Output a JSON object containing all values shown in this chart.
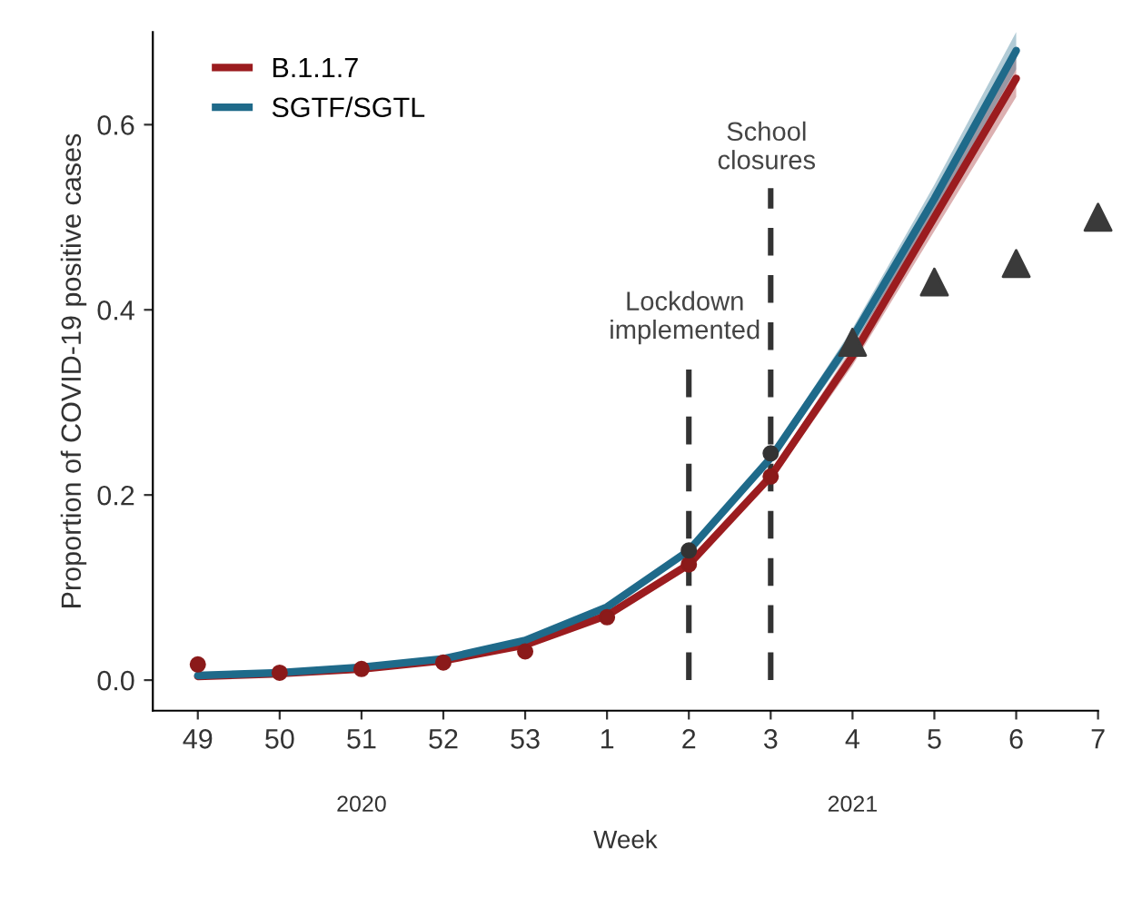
{
  "chart_data": {
    "type": "line",
    "xlabel": "Week",
    "ylabel": "Proportion of COVID-19 positive cases",
    "categories": [
      "49",
      "50",
      "51",
      "52",
      "53",
      "1",
      "2",
      "3",
      "4",
      "5",
      "6",
      "7"
    ],
    "series": [
      {
        "name": "B.1.1.7",
        "color": "#9b1c1f",
        "values": [
          0.004,
          0.007,
          0.012,
          0.021,
          0.038,
          0.07,
          0.125,
          0.22,
          0.35,
          0.5,
          0.65,
          null
        ],
        "lower": [
          null,
          null,
          null,
          null,
          null,
          null,
          null,
          0.215,
          0.34,
          0.485,
          0.63,
          null
        ],
        "upper": [
          null,
          null,
          null,
          null,
          null,
          null,
          null,
          0.225,
          0.36,
          0.515,
          0.675,
          null
        ]
      },
      {
        "name": "SGTF/SGTL",
        "color": "#1f6a8a",
        "values": [
          0.005,
          0.008,
          0.014,
          0.023,
          0.043,
          0.079,
          0.14,
          0.24,
          0.37,
          0.52,
          0.68,
          null
        ],
        "lower": [
          null,
          null,
          null,
          null,
          null,
          null,
          null,
          0.235,
          0.36,
          0.505,
          0.66,
          null
        ],
        "upper": [
          null,
          null,
          null,
          null,
          null,
          null,
          null,
          0.245,
          0.38,
          0.535,
          0.7,
          null
        ]
      },
      {
        "type": "scatter",
        "marker": "circle",
        "color": "#8b1a1a",
        "values": [
          0.017,
          0.008,
          0.012,
          0.019,
          0.031,
          0.068,
          0.125,
          0.22,
          null,
          null,
          null,
          null
        ]
      },
      {
        "type": "scatter",
        "marker": "circle",
        "color": "#333333",
        "values": [
          null,
          null,
          null,
          null,
          null,
          null,
          0.14,
          0.245,
          null,
          null,
          null,
          null
        ]
      },
      {
        "type": "scatter",
        "marker": "triangle",
        "color": "#3a3a3a",
        "values": [
          null,
          null,
          null,
          null,
          null,
          null,
          null,
          null,
          0.365,
          0.43,
          0.45,
          0.5
        ]
      }
    ],
    "ylim": [
      -0.033,
      0.7
    ],
    "yticks": [
      {
        "value": 0,
        "label": "0.0"
      },
      {
        "value": 0.2,
        "label": "0.2"
      },
      {
        "value": 0.4,
        "label": "0.4"
      },
      {
        "value": 0.6,
        "label": "0.6"
      }
    ],
    "ref_lines": [
      {
        "axis": "x",
        "value": "2",
        "label": "Lockdown\nimplemented",
        "color": "#333333",
        "line_style": "dashed"
      },
      {
        "axis": "x",
        "value": "3",
        "label": "School\nclosures",
        "color": "#333333",
        "line_style": "dashed"
      }
    ],
    "annotations": [
      "2020",
      "2021"
    ],
    "grid": false,
    "legend": "top left",
    "marker": "none",
    "line_style": "solid"
  }
}
